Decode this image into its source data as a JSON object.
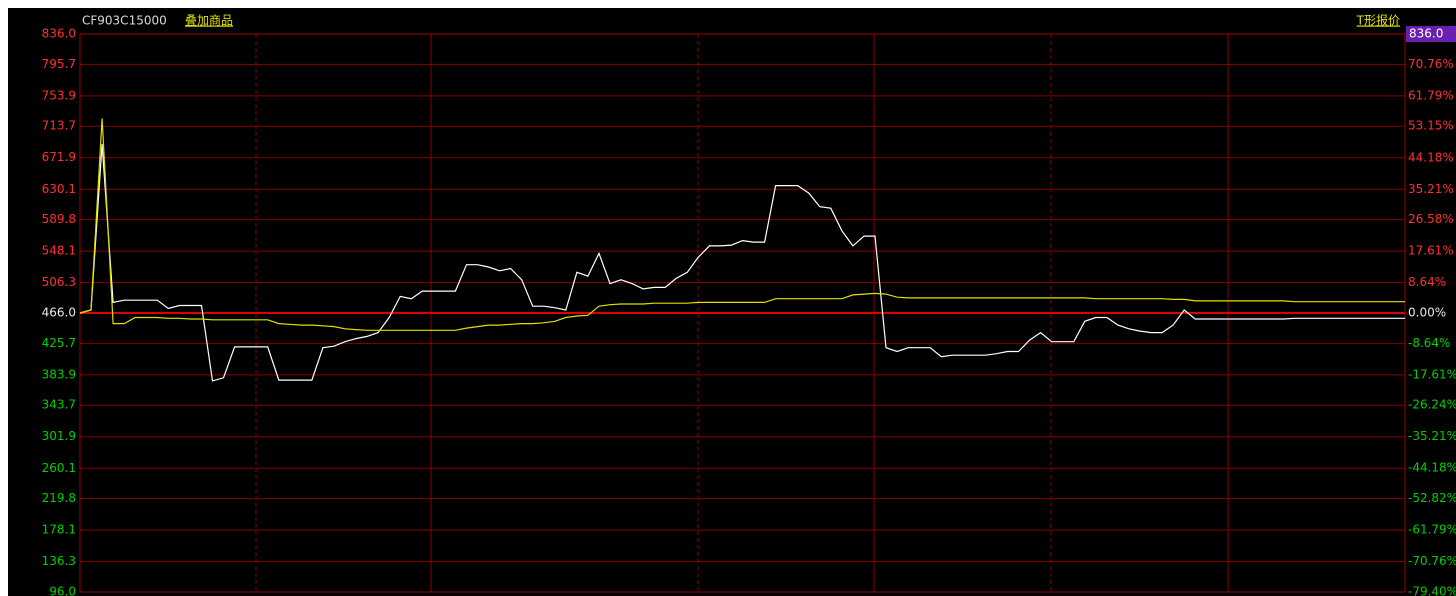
{
  "chart_data": {
    "type": "line",
    "symbol": "CF903C15000",
    "overlay_link": "叠加商品",
    "quote_link": "T形报价",
    "price_box": "836.0",
    "grid": true,
    "ylim": [
      96,
      836
    ],
    "yticks": [
      {
        "value": 836,
        "label": "836.0"
      },
      795.7,
      753.9,
      713.7,
      671.9,
      630.1,
      589.8,
      548.1,
      506.3,
      {
        "value": 466,
        "label": "466.0"
      },
      425.7,
      383.9,
      343.7,
      301.9,
      260.1,
      219.8,
      178.1,
      136.3,
      {
        "value": 96,
        "label": "96.0"
      }
    ],
    "y2lim": [
      -79.4,
      79.4
    ],
    "y2ticks": [
      {
        "value": 70.76,
        "label": "70.76%"
      },
      {
        "value": 61.79,
        "label": "61.79%"
      },
      {
        "value": 53.15,
        "label": "53.15%"
      },
      {
        "value": 44.18,
        "label": "44.18%"
      },
      {
        "value": 35.21,
        "label": "35.21%"
      },
      {
        "value": 26.58,
        "label": "26.58%"
      },
      {
        "value": 17.61,
        "label": "17.61%"
      },
      {
        "value": 8.64,
        "label": "8.64%"
      },
      {
        "value": 0,
        "label": "0.00%"
      },
      {
        "value": -8.64,
        "label": "-8.64%"
      },
      {
        "value": -17.61,
        "label": "-17.61%"
      },
      {
        "value": -26.24,
        "label": "-26.24%"
      },
      {
        "value": -35.21,
        "label": "-35.21%"
      },
      {
        "value": -44.18,
        "label": "-44.18%"
      },
      {
        "value": -52.82,
        "label": "-52.82%"
      },
      {
        "value": -61.79,
        "label": "-61.79%"
      },
      {
        "value": -70.76,
        "label": "-70.76%"
      },
      {
        "value": -79.4,
        "label": "-79.40%"
      }
    ],
    "series": [
      {
        "color": "#ffffff",
        "values": [
          466,
          470,
          690,
          480,
          483,
          483,
          483,
          483,
          472,
          476,
          476,
          476,
          376,
          380,
          421,
          421,
          421,
          421,
          377,
          377,
          377,
          377,
          420,
          422,
          428,
          432,
          435,
          440,
          460,
          488,
          485,
          495,
          495,
          495,
          495,
          530,
          530,
          527,
          522,
          525,
          510,
          475,
          475,
          473,
          470,
          520,
          515,
          545,
          505,
          510,
          505,
          498,
          500,
          500,
          512,
          520,
          540,
          555,
          555,
          556,
          562,
          560,
          560,
          635,
          635,
          635,
          625,
          607,
          605,
          575,
          555,
          568,
          568,
          420,
          415,
          420,
          420,
          420,
          408,
          410,
          410,
          410,
          410,
          412,
          415,
          415,
          430,
          440,
          428,
          428,
          428,
          455,
          460,
          460,
          450,
          445,
          442,
          440,
          440,
          450,
          470,
          458,
          458,
          458,
          458,
          458,
          458,
          458,
          458,
          458,
          459,
          459,
          459,
          459,
          459,
          459,
          459,
          459,
          459,
          459,
          459
        ]
      },
      {
        "color": "#e0e000",
        "values": [
          466,
          470,
          724,
          452,
          452,
          460,
          460,
          460,
          459,
          459,
          458,
          458,
          457,
          457,
          457,
          457,
          457,
          457,
          452,
          451,
          450,
          450,
          449,
          448,
          445,
          444,
          443,
          443,
          443,
          443,
          443,
          443,
          443,
          443,
          443,
          446,
          448,
          450,
          450,
          451,
          452,
          452,
          453,
          455,
          460,
          462,
          463,
          475,
          477,
          478,
          478,
          478,
          479,
          479,
          479,
          479,
          480,
          480,
          480,
          480,
          480,
          480,
          480,
          485,
          485,
          485,
          485,
          485,
          485,
          485,
          490,
          491,
          492,
          491,
          487,
          486,
          486,
          486,
          486,
          486,
          486,
          486,
          486,
          486,
          486,
          486,
          486,
          486,
          486,
          486,
          486,
          486,
          485,
          485,
          485,
          485,
          485,
          485,
          485,
          484,
          484,
          482,
          482,
          482,
          482,
          482,
          482,
          482,
          482,
          482,
          481,
          481,
          481,
          481,
          481,
          481,
          481,
          481,
          481,
          481,
          481
        ]
      }
    ]
  }
}
